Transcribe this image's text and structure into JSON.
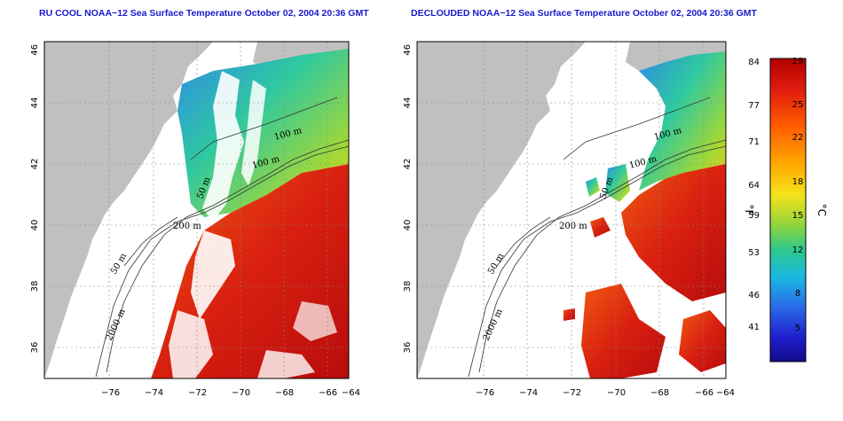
{
  "panels": [
    {
      "id": "raw",
      "title": "RU COOL NOAA−12 Sea Surface Temperature October 02, 2004 20:36 GMT",
      "clouds": true
    },
    {
      "id": "declouded",
      "title": "DECLOUDED NOAA−12 Sea Surface Temperature October 02, 2004 20:36 GMT",
      "clouds": false
    }
  ],
  "axes": {
    "lon_ticks": [
      "−76",
      "−74",
      "−72",
      "−70",
      "−68",
      "−66",
      "−64"
    ],
    "lat_ticks": [
      "36",
      "38",
      "40",
      "42",
      "44",
      "46"
    ],
    "lon_range": [
      -77,
      -63
    ],
    "lat_range": [
      35,
      46
    ]
  },
  "contour_labels": [
    {
      "text": "100 m"
    },
    {
      "text": "100 m"
    },
    {
      "text": "200 m"
    },
    {
      "text": "50 m"
    },
    {
      "text": "50 m"
    },
    {
      "text": "2000 m"
    }
  ],
  "colorbar": {
    "fahrenheit_ticks": [
      "84",
      "77",
      "71",
      "64",
      "59",
      "53",
      "46",
      "41"
    ],
    "celsius_ticks": [
      "29",
      "25",
      "22",
      "18",
      "15",
      "12",
      "8",
      "5"
    ],
    "fahrenheit_unit": "°F",
    "celsius_unit": "°C",
    "colors": [
      "#b30000",
      "#e01b0f",
      "#ff5a00",
      "#ffaa00",
      "#f5e31b",
      "#8fd43c",
      "#2ec98a",
      "#1ab8e0",
      "#2a6be8",
      "#1f1fcc",
      "#120a8c"
    ]
  },
  "colors": {
    "land": "#c0c0c0",
    "title": "#1a1acc"
  }
}
